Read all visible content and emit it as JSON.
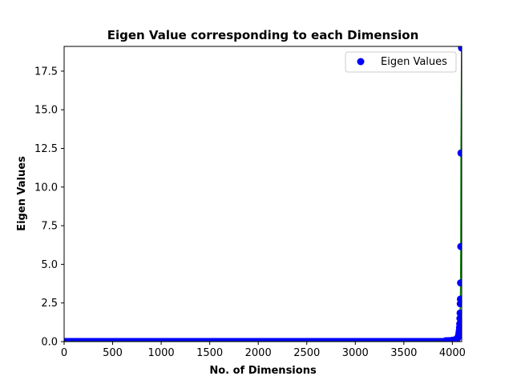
{
  "chart_data": {
    "type": "scatter",
    "title": "Eigen Value corresponding to each Dimension",
    "xlabel": "No. of Dimensions",
    "ylabel": "Eigen Values",
    "xlim": [
      0,
      4096
    ],
    "ylim": [
      0,
      19.1
    ],
    "xticks": [
      0,
      500,
      1000,
      1500,
      2000,
      2500,
      3000,
      3500,
      4000
    ],
    "yticks": [
      0.0,
      2.5,
      5.0,
      7.5,
      10.0,
      12.5,
      15.0,
      17.5
    ],
    "grid": false,
    "legend": {
      "position": "top-right",
      "entries": [
        "Eigen Values"
      ]
    },
    "colors": {
      "points": "#0000ff",
      "line": "#008000"
    },
    "series": [
      {
        "name": "Eigen Values",
        "baseline_value": 0.0,
        "baseline_range": [
          0,
          3930
        ],
        "points": [
          [
            3930,
            0.05
          ],
          [
            3945,
            0.05
          ],
          [
            3960,
            0.06
          ],
          [
            3975,
            0.06
          ],
          [
            3990,
            0.07
          ],
          [
            4000,
            0.08
          ],
          [
            4010,
            0.09
          ],
          [
            4020,
            0.1
          ],
          [
            4030,
            0.12
          ],
          [
            4040,
            0.15
          ],
          [
            4048,
            0.18
          ],
          [
            4054,
            0.22
          ],
          [
            4060,
            0.3
          ],
          [
            4064,
            0.4
          ],
          [
            4068,
            0.55
          ],
          [
            4071,
            0.7
          ],
          [
            4074,
            0.9
          ],
          [
            4076,
            1.15
          ],
          [
            4078,
            1.5
          ],
          [
            4080,
            1.85
          ],
          [
            4082,
            2.45
          ],
          [
            4083,
            2.75
          ],
          [
            4085,
            3.8
          ],
          [
            4087,
            6.15
          ],
          [
            4089,
            12.2
          ],
          [
            4095,
            19.0
          ]
        ]
      }
    ]
  }
}
